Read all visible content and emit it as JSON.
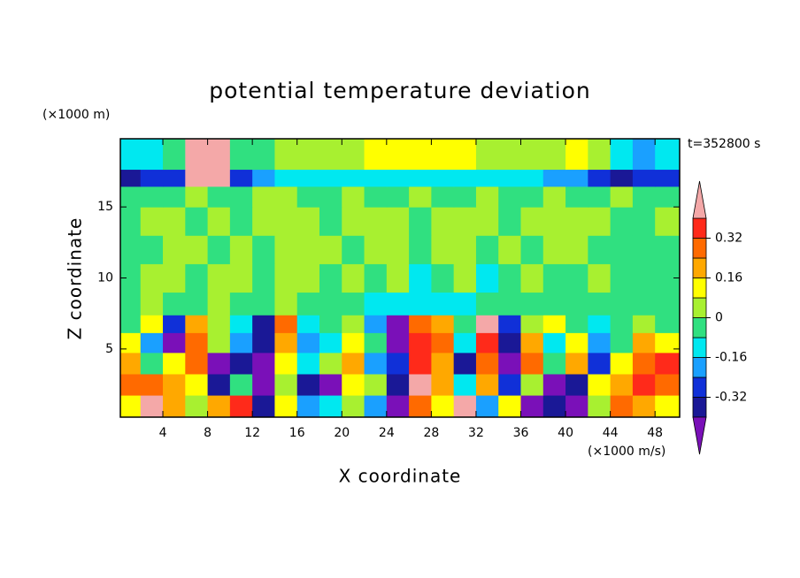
{
  "chart_data": {
    "type": "contour",
    "title": "potential temperature deviation",
    "time_label": "t=352800 s",
    "x_label": "X coordinate",
    "y_label": "Z coordinate",
    "x_unit": "(×1000 m/s)",
    "y_unit": "(×1000 m)",
    "xlim": [
      0.2,
      50.2
    ],
    "ylim": [
      0.2,
      19.8
    ],
    "xticks": [
      4,
      8,
      12,
      16,
      20,
      24,
      28,
      32,
      36,
      40,
      44,
      48
    ],
    "yticks": [
      5,
      10,
      15
    ],
    "x": [
      1,
      3,
      5,
      7,
      9,
      11,
      13,
      15,
      17,
      19,
      21,
      23,
      25,
      27,
      29,
      31,
      33,
      35,
      37,
      39,
      41,
      43,
      45,
      47,
      49
    ],
    "y": [
      1,
      2.5,
      4,
      5.5,
      6.8,
      8,
      10,
      12,
      14,
      16,
      16.9,
      18.4
    ],
    "z": [
      [
        0.12,
        0.45,
        0.2,
        0.04,
        0.2,
        0.36,
        -0.36,
        0.12,
        -0.2,
        -0.12,
        0.04,
        -0.2,
        -0.45,
        0.28,
        0.12,
        0.45,
        -0.2,
        0.12,
        -0.45,
        -0.36,
        -0.45,
        0.04,
        0.28,
        0.2,
        0.12
      ],
      [
        0.28,
        0.28,
        0.2,
        0.12,
        -0.36,
        -0.04,
        -0.45,
        0.04,
        -0.36,
        -0.45,
        0.12,
        0.04,
        -0.36,
        0.45,
        0.2,
        -0.12,
        0.2,
        -0.28,
        0.04,
        -0.45,
        -0.36,
        0.12,
        0.2,
        0.36,
        0.28
      ],
      [
        0.2,
        -0.04,
        0.12,
        0.28,
        -0.45,
        -0.36,
        -0.45,
        0.12,
        -0.12,
        0.04,
        0.2,
        -0.2,
        -0.28,
        0.36,
        0.2,
        -0.36,
        0.28,
        -0.45,
        0.28,
        -0.04,
        0.2,
        -0.28,
        0.12,
        0.28,
        0.36
      ],
      [
        0.12,
        -0.2,
        -0.45,
        0.28,
        0.04,
        -0.2,
        -0.36,
        0.2,
        -0.2,
        -0.12,
        0.12,
        -0.04,
        -0.45,
        0.36,
        0.28,
        -0.12,
        0.36,
        -0.36,
        0.2,
        -0.12,
        0.12,
        -0.2,
        -0.04,
        0.2,
        0.12
      ],
      [
        -0.04,
        0.12,
        -0.28,
        0.2,
        0.04,
        -0.12,
        -0.36,
        0.28,
        -0.12,
        -0.04,
        0.04,
        -0.2,
        -0.45,
        0.28,
        0.2,
        -0.04,
        0.45,
        -0.28,
        0.04,
        0.12,
        -0.04,
        -0.12,
        -0.04,
        0.04,
        -0.04
      ],
      [
        -0.04,
        0.04,
        -0.04,
        -0.04,
        0.04,
        -0.04,
        -0.04,
        0.04,
        -0.04,
        -0.04,
        -0.04,
        -0.12,
        -0.12,
        -0.12,
        -0.12,
        -0.12,
        -0.04,
        -0.04,
        -0.04,
        -0.04,
        -0.04,
        -0.04,
        -0.04,
        -0.04,
        -0.04
      ],
      [
        -0.04,
        0.04,
        0.04,
        -0.04,
        0.04,
        0.04,
        -0.04,
        0.04,
        0.04,
        -0.04,
        0.04,
        -0.04,
        0.04,
        -0.12,
        -0.04,
        0.04,
        -0.12,
        -0.04,
        0.04,
        -0.04,
        -0.04,
        0.04,
        -0.04,
        -0.04,
        -0.04
      ],
      [
        -0.04,
        -0.04,
        0.04,
        0.04,
        -0.04,
        0.04,
        -0.04,
        0.04,
        0.04,
        0.04,
        -0.04,
        0.04,
        0.04,
        -0.04,
        0.04,
        0.04,
        -0.04,
        0.04,
        -0.04,
        0.04,
        0.04,
        -0.04,
        -0.04,
        -0.04,
        -0.04
      ],
      [
        -0.04,
        0.04,
        0.04,
        -0.04,
        0.04,
        -0.04,
        0.04,
        0.04,
        0.04,
        -0.04,
        0.04,
        0.04,
        0.04,
        -0.04,
        0.04,
        0.04,
        0.04,
        -0.04,
        0.04,
        0.04,
        0.04,
        0.04,
        -0.04,
        -0.04,
        0.04
      ],
      [
        -0.04,
        -0.04,
        -0.04,
        0.04,
        -0.04,
        -0.04,
        0.04,
        0.04,
        -0.04,
        -0.04,
        0.04,
        -0.04,
        -0.04,
        0.04,
        -0.04,
        -0.04,
        0.04,
        -0.04,
        -0.04,
        0.04,
        -0.04,
        -0.04,
        0.04,
        -0.04,
        -0.04
      ],
      [
        -0.36,
        -0.28,
        -0.28,
        0.45,
        0.45,
        -0.28,
        -0.2,
        -0.12,
        -0.12,
        -0.12,
        -0.12,
        -0.12,
        -0.12,
        -0.12,
        -0.12,
        -0.12,
        -0.12,
        -0.12,
        -0.12,
        -0.2,
        -0.2,
        -0.28,
        -0.36,
        -0.28,
        -0.28
      ],
      [
        -0.12,
        -0.12,
        -0.04,
        0.45,
        0.45,
        -0.04,
        -0.04,
        0.04,
        0.04,
        0.04,
        0.04,
        0.12,
        0.12,
        0.12,
        0.12,
        0.12,
        0.04,
        0.04,
        0.04,
        0.04,
        0.12,
        0.04,
        -0.12,
        -0.2,
        -0.12
      ]
    ],
    "levels": [
      -0.4,
      -0.32,
      -0.24,
      -0.16,
      -0.08,
      0,
      0.08,
      0.16,
      0.24,
      0.32,
      0.4
    ],
    "colors": [
      "#7a10b8",
      "#1a1896",
      "#1030d8",
      "#1aa0ff",
      "#00e8f0",
      "#30e080",
      "#a8f030",
      "#ffff00",
      "#ffa800",
      "#ff6a00",
      "#ff2a1a",
      "#f4a8a8"
    ],
    "colorbar_ticks": [
      0.32,
      0.16,
      0,
      -0.16,
      -0.32
    ]
  }
}
